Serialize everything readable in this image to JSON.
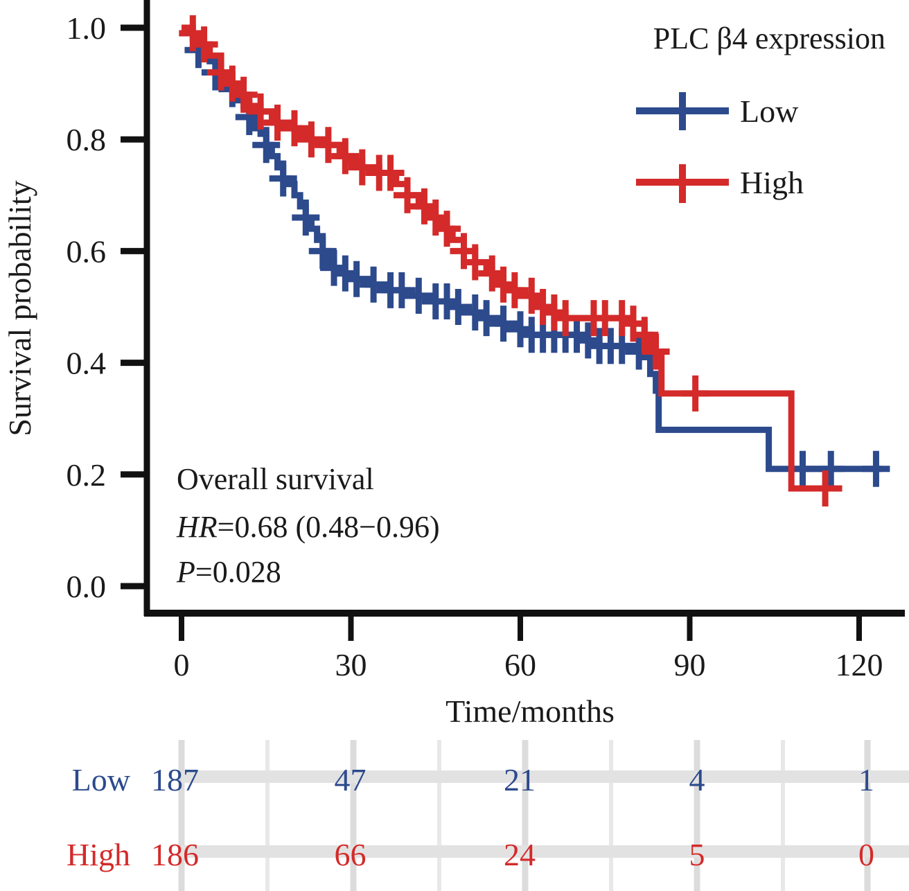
{
  "chart_data": {
    "type": "line",
    "subtype": "kaplan-meier",
    "title": "",
    "xlabel": "Time/months",
    "ylabel": "Survival probability",
    "xlim": [
      0,
      125
    ],
    "ylim": [
      0,
      1.0
    ],
    "x_ticks": [
      0,
      30,
      60,
      90,
      120
    ],
    "x_tick_labels": [
      "0",
      "30",
      "60",
      "90",
      "120"
    ],
    "y_ticks": [
      0.0,
      0.2,
      0.4,
      0.6,
      0.8,
      1.0
    ],
    "y_tick_labels": [
      "0.0",
      "0.2",
      "0.4",
      "0.6",
      "0.8",
      "1.0"
    ],
    "grid": false,
    "legend": {
      "title": "PLC β4 expression",
      "placement": "top-right",
      "entries": [
        "Low",
        "High"
      ]
    },
    "annotations": {
      "line1": "Overall survival",
      "hr_label": "HR",
      "hr_value": "=0.68 (0.48−0.96)",
      "p_label": "P",
      "p_value": "=0.028"
    },
    "series": [
      {
        "name": "Low",
        "color": "#2c4a8c",
        "steps": [
          [
            0,
            1.0
          ],
          [
            1,
            0.99
          ],
          [
            2,
            0.98
          ],
          [
            3,
            0.96
          ],
          [
            4,
            0.95
          ],
          [
            5,
            0.94
          ],
          [
            6,
            0.92
          ],
          [
            7,
            0.91
          ],
          [
            8,
            0.9
          ],
          [
            9,
            0.89
          ],
          [
            10,
            0.87
          ],
          [
            11,
            0.86
          ],
          [
            12,
            0.84
          ],
          [
            13,
            0.82
          ],
          [
            14,
            0.81
          ],
          [
            15,
            0.79
          ],
          [
            16,
            0.77
          ],
          [
            17,
            0.75
          ],
          [
            18,
            0.73
          ],
          [
            19,
            0.72
          ],
          [
            20,
            0.7
          ],
          [
            21,
            0.68
          ],
          [
            22,
            0.66
          ],
          [
            23,
            0.64
          ],
          [
            24,
            0.62
          ],
          [
            25,
            0.6
          ],
          [
            26,
            0.58
          ],
          [
            27,
            0.57
          ],
          [
            28,
            0.56
          ],
          [
            30,
            0.55
          ],
          [
            33,
            0.54
          ],
          [
            36,
            0.53
          ],
          [
            40,
            0.52
          ],
          [
            44,
            0.51
          ],
          [
            48,
            0.5
          ],
          [
            50,
            0.49
          ],
          [
            53,
            0.48
          ],
          [
            56,
            0.47
          ],
          [
            60,
            0.46
          ],
          [
            62,
            0.45
          ],
          [
            72,
            0.44
          ],
          [
            74,
            0.43
          ],
          [
            80,
            0.42
          ],
          [
            82,
            0.41
          ],
          [
            83,
            0.38
          ],
          [
            84,
            0.35
          ],
          [
            84.5,
            0.28
          ],
          [
            104,
            0.21
          ],
          [
            124,
            0.21
          ]
        ],
        "censor_times": [
          3,
          6,
          9,
          12,
          15,
          18,
          22,
          25,
          27,
          29,
          31,
          34,
          37,
          39,
          42,
          45,
          47,
          49,
          52,
          54,
          57,
          60,
          62,
          64,
          66,
          68,
          70,
          72,
          74,
          76,
          78,
          81,
          110,
          115,
          123
        ]
      },
      {
        "name": "High",
        "color": "#d42a2a",
        "steps": [
          [
            0,
            1.0
          ],
          [
            2,
            0.99
          ],
          [
            3,
            0.97
          ],
          [
            5,
            0.95
          ],
          [
            7,
            0.92
          ],
          [
            8,
            0.9
          ],
          [
            10,
            0.88
          ],
          [
            12,
            0.86
          ],
          [
            14,
            0.85
          ],
          [
            16,
            0.83
          ],
          [
            18,
            0.82
          ],
          [
            21,
            0.81
          ],
          [
            23,
            0.8
          ],
          [
            25,
            0.79
          ],
          [
            28,
            0.77
          ],
          [
            30,
            0.76
          ],
          [
            32,
            0.75
          ],
          [
            35,
            0.74
          ],
          [
            38,
            0.72
          ],
          [
            40,
            0.7
          ],
          [
            42,
            0.68
          ],
          [
            44,
            0.66
          ],
          [
            46,
            0.64
          ],
          [
            48,
            0.62
          ],
          [
            50,
            0.6
          ],
          [
            52,
            0.58
          ],
          [
            54,
            0.56
          ],
          [
            56,
            0.54
          ],
          [
            58,
            0.53
          ],
          [
            60,
            0.52
          ],
          [
            63,
            0.5
          ],
          [
            66,
            0.49
          ],
          [
            68,
            0.48
          ],
          [
            72,
            0.48
          ],
          [
            80,
            0.47
          ],
          [
            82,
            0.45
          ],
          [
            83,
            0.42
          ],
          [
            85,
            0.345
          ],
          [
            108,
            0.175
          ],
          [
            117,
            0.175
          ]
        ],
        "censor_times": [
          2,
          4,
          7,
          9,
          11,
          14,
          17,
          20,
          23,
          26,
          29,
          32,
          35,
          37,
          40,
          43,
          45,
          47,
          50,
          52,
          55,
          57,
          59,
          62,
          64,
          66,
          68,
          73,
          75,
          78,
          80,
          82,
          84,
          91,
          114
        ]
      }
    ],
    "risk_table": {
      "times": [
        0,
        30,
        60,
        90,
        120
      ],
      "rows": [
        {
          "label": "Low",
          "color": "#2c4a8c",
          "counts": [
            "187",
            "47",
            "21",
            "4",
            "1"
          ]
        },
        {
          "label": "High",
          "color": "#d42a2a",
          "counts": [
            "186",
            "66",
            "24",
            "5",
            "0"
          ]
        }
      ]
    }
  }
}
